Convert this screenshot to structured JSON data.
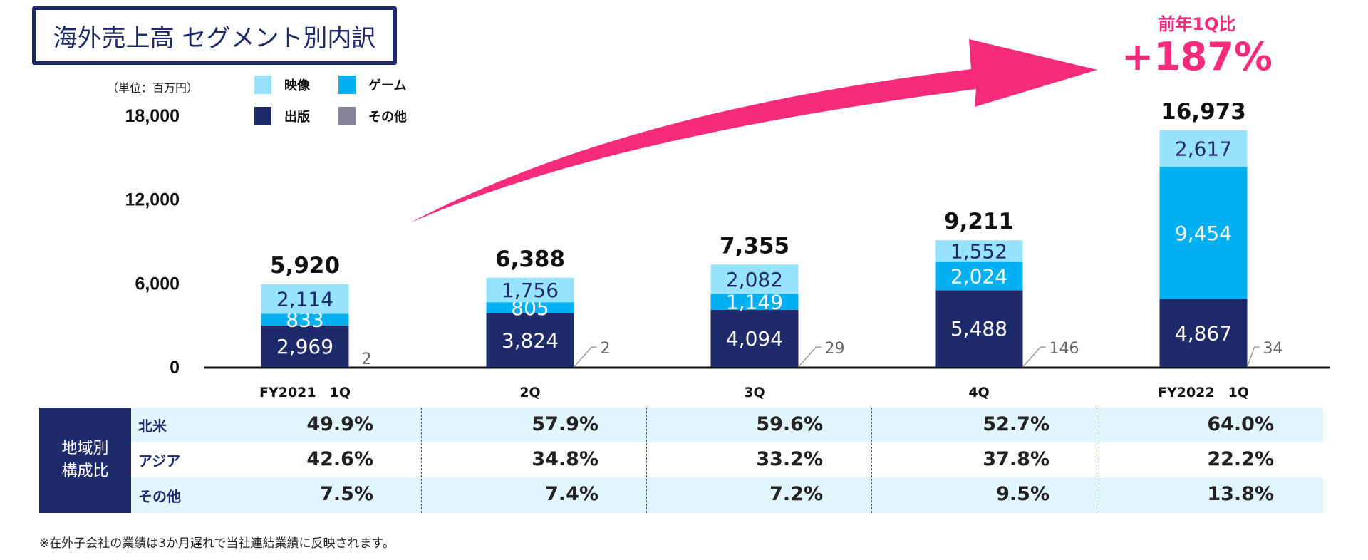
{
  "title": "海外売上高 セグメント別内訳",
  "yoy": {
    "label": "前年1Q比",
    "value": "+187%"
  },
  "chart_data": {
    "type": "bar",
    "stacked": true,
    "unit_label": "（単位：百万円）",
    "categories": [
      "FY2021　1Q",
      "2Q",
      "3Q",
      "4Q",
      "FY2022　1Q"
    ],
    "series": [
      {
        "name": "出版",
        "color": "#1f2a6b",
        "values": [
          2969,
          3824,
          4094,
          5488,
          4867
        ],
        "labels": [
          "2,969",
          "3,824",
          "4,094",
          "5,488",
          "4,867"
        ]
      },
      {
        "name": "ゲーム",
        "color": "#00b0f0",
        "values": [
          833,
          805,
          1149,
          2024,
          9454
        ],
        "labels": [
          "833",
          "805",
          "1,149",
          "2,024",
          "9,454"
        ]
      },
      {
        "name": "映像",
        "color": "#97e2fc",
        "values": [
          2114,
          1756,
          2082,
          1552,
          2617
        ],
        "labels": [
          "2,114",
          "1,756",
          "2,082",
          "1,552",
          "2,617"
        ]
      },
      {
        "name": "その他",
        "color": "#86849a",
        "values": [
          2,
          2,
          29,
          146,
          34
        ],
        "labels": [
          "2",
          "2",
          "29",
          "146",
          "34"
        ]
      }
    ],
    "totals": [
      "5,920",
      "6,388",
      "7,355",
      "9,211",
      "16,973"
    ],
    "yticks": [
      "0",
      "6,000",
      "12,000",
      "18,000"
    ],
    "ylim": [
      0,
      18000
    ],
    "grid": false,
    "legend": {
      "placement": "top-left",
      "order": [
        "映像",
        "ゲーム",
        "出版",
        "その他"
      ]
    },
    "arrow_color": "#f72b7b"
  },
  "region_table": {
    "header": "地域別\n構成比",
    "rows": [
      {
        "name": "北米",
        "values": [
          "49.9%",
          "57.9%",
          "59.6%",
          "52.7%",
          "64.0%"
        ]
      },
      {
        "name": "アジア",
        "values": [
          "42.6%",
          "34.8%",
          "33.2%",
          "37.8%",
          "22.2%"
        ]
      },
      {
        "name": "その他",
        "values": [
          "7.5%",
          "7.4%",
          "7.2%",
          "9.5%",
          "13.8%"
        ]
      }
    ]
  },
  "footnote": "※在外子会社の業績は3か月遅れで当社連結業績に反映されます。"
}
